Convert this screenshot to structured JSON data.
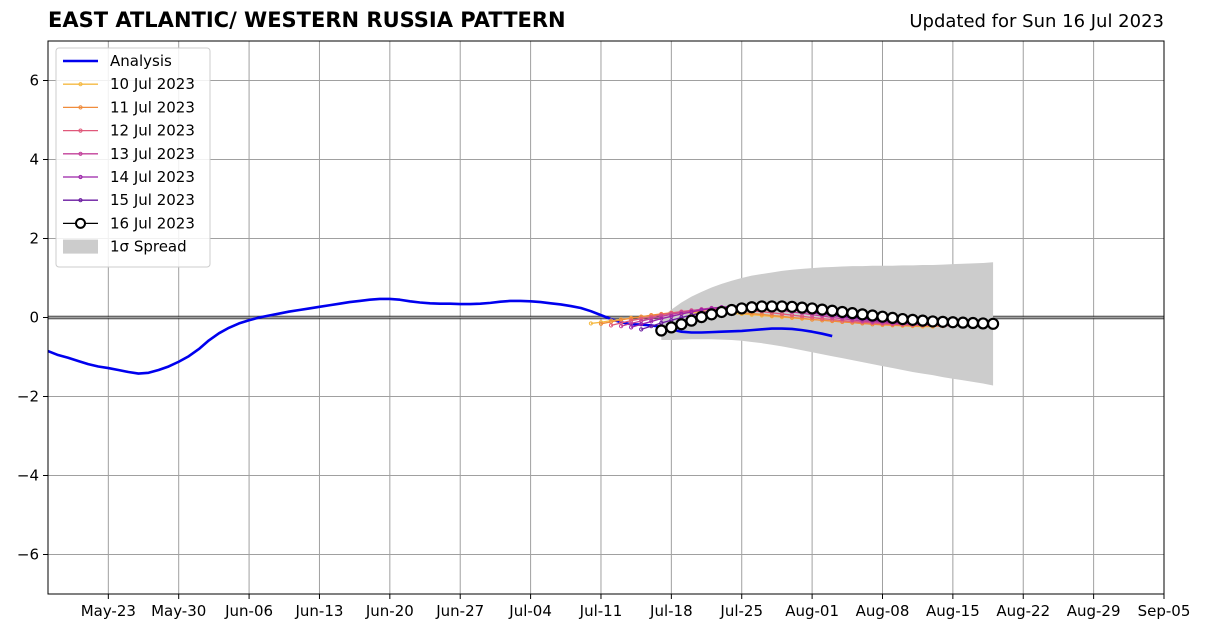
{
  "title": "EAST ATLANTIC/ WESTERN RUSSIA PATTERN",
  "updated": "Updated for Sun 16 Jul 2023",
  "chart_data": {
    "type": "line",
    "title": "EAST ATLANTIC/ WESTERN RUSSIA PATTERN",
    "xlabel": "",
    "ylabel": "",
    "xlim": [
      "2023-05-17",
      "2023-09-05"
    ],
    "ylim": [
      -7,
      7
    ],
    "x_ticks": [
      "May-23",
      "May-30",
      "Jun-06",
      "Jun-13",
      "Jun-20",
      "Jun-27",
      "Jul-04",
      "Jul-11",
      "Jul-18",
      "Jul-25",
      "Aug-01",
      "Aug-08",
      "Aug-15",
      "Aug-22",
      "Aug-29",
      "Sep-05"
    ],
    "y_ticks": [
      "6",
      "4",
      "2",
      "0",
      "−2",
      "−4",
      "−6"
    ],
    "y_tick_values": [
      6,
      4,
      2,
      0,
      -2,
      -4,
      -6
    ],
    "grid": true,
    "legend_position": "upper-left",
    "zero_line": true,
    "analysis": {
      "name": "Analysis",
      "color": "#0000ee",
      "start": "2023-05-17",
      "values": [
        -0.85,
        -0.95,
        -1.02,
        -1.1,
        -1.18,
        -1.24,
        -1.28,
        -1.33,
        -1.38,
        -1.42,
        -1.4,
        -1.33,
        -1.24,
        -1.12,
        -0.98,
        -0.8,
        -0.58,
        -0.4,
        -0.26,
        -0.15,
        -0.07,
        0.0,
        0.05,
        0.1,
        0.15,
        0.19,
        0.23,
        0.27,
        0.31,
        0.35,
        0.39,
        0.42,
        0.45,
        0.47,
        0.47,
        0.45,
        0.41,
        0.38,
        0.36,
        0.35,
        0.35,
        0.34,
        0.34,
        0.35,
        0.37,
        0.4,
        0.42,
        0.42,
        0.41,
        0.39,
        0.36,
        0.33,
        0.29,
        0.24,
        0.16,
        0.06,
        -0.04,
        -0.12,
        -0.17,
        -0.18,
        -0.2,
        -0.24,
        -0.3,
        -0.36,
        -0.38,
        -0.38,
        -0.37,
        -0.36,
        -0.35,
        -0.34,
        -0.32,
        -0.3,
        -0.28,
        -0.28,
        -0.29,
        -0.32,
        -0.36,
        -0.41,
        -0.47
      ]
    },
    "forecasts": [
      {
        "name": "10 Jul 2023",
        "color": "#f5b942",
        "start": "2023-07-10",
        "values": [
          -0.15,
          -0.12,
          -0.08,
          -0.05,
          -0.01,
          0.02,
          0.05,
          0.08,
          0.1,
          0.11,
          0.12,
          0.12,
          0.12,
          0.11,
          0.1,
          0.09,
          0.07,
          0.05,
          0.03,
          0.01,
          -0.01,
          -0.03,
          -0.05,
          -0.07,
          -0.09,
          -0.11,
          -0.13,
          -0.15,
          -0.17,
          -0.19,
          -0.2,
          -0.21,
          -0.22,
          -0.23,
          -0.23
        ]
      },
      {
        "name": "11 Jul 2023",
        "color": "#f08c3c",
        "start": "2023-07-11",
        "values": [
          -0.16,
          -0.11,
          -0.06,
          -0.02,
          0.02,
          0.06,
          0.09,
          0.12,
          0.14,
          0.15,
          0.16,
          0.16,
          0.15,
          0.14,
          0.12,
          0.1,
          0.08,
          0.05,
          0.03,
          0.0,
          -0.02,
          -0.05,
          -0.07,
          -0.09,
          -0.11,
          -0.13,
          -0.15,
          -0.17,
          -0.18,
          -0.19,
          -0.2,
          -0.21,
          -0.21,
          -0.22,
          -0.22
        ]
      },
      {
        "name": "12 Jul 2023",
        "color": "#e0587a",
        "start": "2023-07-12",
        "values": [
          -0.2,
          -0.14,
          -0.08,
          -0.03,
          0.02,
          0.07,
          0.11,
          0.15,
          0.18,
          0.2,
          0.21,
          0.21,
          0.2,
          0.19,
          0.17,
          0.15,
          0.12,
          0.09,
          0.06,
          0.03,
          0.0,
          -0.03,
          -0.05,
          -0.08,
          -0.1,
          -0.12,
          -0.14,
          -0.16,
          -0.17,
          -0.18,
          -0.19,
          -0.2,
          -0.2,
          -0.21,
          -0.21
        ]
      },
      {
        "name": "13 Jul 2023",
        "color": "#c2409a",
        "start": "2023-07-13",
        "values": [
          -0.22,
          -0.15,
          -0.09,
          -0.03,
          0.03,
          0.08,
          0.13,
          0.17,
          0.21,
          0.24,
          0.26,
          0.27,
          0.27,
          0.26,
          0.24,
          0.21,
          0.18,
          0.14,
          0.11,
          0.07,
          0.04,
          0.0,
          -0.03,
          -0.06,
          -0.09,
          -0.11,
          -0.13,
          -0.15,
          -0.16,
          -0.17,
          -0.18,
          -0.19,
          -0.19,
          -0.2,
          -0.2
        ]
      },
      {
        "name": "14 Jul 2023",
        "color": "#9b22a8",
        "start": "2023-07-14",
        "values": [
          -0.25,
          -0.17,
          -0.1,
          -0.03,
          0.03,
          0.09,
          0.14,
          0.19,
          0.23,
          0.26,
          0.28,
          0.29,
          0.29,
          0.28,
          0.26,
          0.23,
          0.2,
          0.16,
          0.12,
          0.08,
          0.05,
          0.01,
          -0.02,
          -0.05,
          -0.08,
          -0.1,
          -0.12,
          -0.14,
          -0.15,
          -0.16,
          -0.17,
          -0.18,
          -0.18,
          -0.19,
          -0.19
        ]
      },
      {
        "name": "15 Jul 2023",
        "color": "#6a1aa0",
        "start": "2023-07-15",
        "values": [
          -0.3,
          -0.22,
          -0.14,
          -0.07,
          0.0,
          0.06,
          0.12,
          0.17,
          0.21,
          0.24,
          0.27,
          0.28,
          0.28,
          0.27,
          0.25,
          0.22,
          0.19,
          0.15,
          0.11,
          0.08,
          0.04,
          0.01,
          -0.02,
          -0.05,
          -0.07,
          -0.09,
          -0.11,
          -0.13,
          -0.14,
          -0.15,
          -0.16,
          -0.17,
          -0.17,
          -0.18,
          -0.18
        ]
      },
      {
        "name": "16 Jul 2023",
        "color": "#000000",
        "start": "2023-07-17",
        "values": [
          -0.33,
          -0.25,
          -0.17,
          -0.08,
          0.01,
          0.08,
          0.14,
          0.19,
          0.23,
          0.26,
          0.28,
          0.28,
          0.28,
          0.27,
          0.25,
          0.23,
          0.2,
          0.17,
          0.14,
          0.11,
          0.08,
          0.05,
          0.02,
          -0.01,
          -0.04,
          -0.06,
          -0.08,
          -0.1,
          -0.11,
          -0.12,
          -0.13,
          -0.14,
          -0.15,
          -0.16
        ]
      }
    ],
    "spread": {
      "name": "1σ Spread",
      "color": "#cccccc",
      "start": "2023-07-17",
      "upper": [
        0.0,
        0.2,
        0.38,
        0.53,
        0.65,
        0.76,
        0.85,
        0.93,
        1.0,
        1.06,
        1.1,
        1.14,
        1.18,
        1.21,
        1.23,
        1.25,
        1.27,
        1.28,
        1.29,
        1.3,
        1.3,
        1.31,
        1.31,
        1.31,
        1.32,
        1.32,
        1.33,
        1.33,
        1.34,
        1.35,
        1.36,
        1.37,
        1.38,
        1.4
      ],
      "lower": [
        -0.57,
        -0.57,
        -0.56,
        -0.55,
        -0.55,
        -0.55,
        -0.56,
        -0.57,
        -0.59,
        -0.62,
        -0.65,
        -0.69,
        -0.73,
        -0.78,
        -0.83,
        -0.88,
        -0.93,
        -0.98,
        -1.03,
        -1.08,
        -1.13,
        -1.18,
        -1.23,
        -1.28,
        -1.33,
        -1.38,
        -1.42,
        -1.46,
        -1.51,
        -1.55,
        -1.59,
        -1.63,
        -1.67,
        -1.72
      ]
    }
  }
}
